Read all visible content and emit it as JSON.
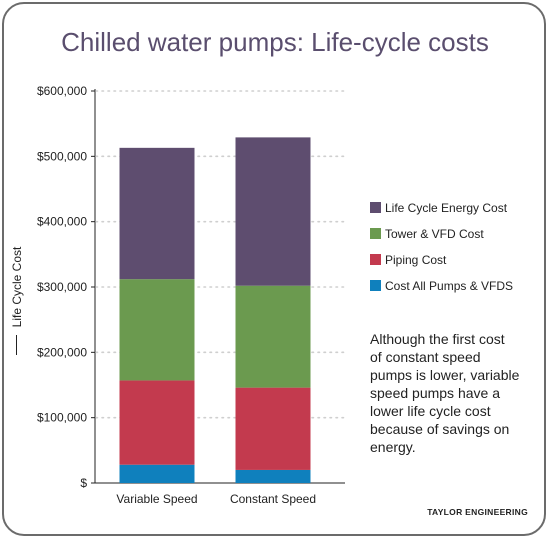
{
  "title": "Chilled water pumps: Life-cycle costs",
  "credit": "TAYLOR ENGINEERING",
  "note": "Although the first cost of constant speed pumps is lower, variable speed pumps have a lower life cycle cost because of savings on energy.",
  "chart_data": {
    "type": "bar",
    "stacked": true,
    "ylabel": "Life Cycle Cost",
    "xlabel": "",
    "ylim": [
      0,
      600000
    ],
    "yticks": [
      0,
      100000,
      200000,
      300000,
      400000,
      500000,
      600000
    ],
    "ytick_labels": [
      "$",
      "$100,000",
      "$200,000",
      "$300,000",
      "$400,000",
      "$500,000",
      "$600,000"
    ],
    "categories": [
      "Variable Speed",
      "Constant Speed"
    ],
    "grid": "horizontal dotted",
    "legend_position": "right",
    "series": [
      {
        "name": "Cost All Pumps & VFDS",
        "color": "#0f80bd",
        "values": [
          28000,
          20000
        ]
      },
      {
        "name": "Piping Cost",
        "color": "#c33a4e",
        "values": [
          129000,
          126000
        ]
      },
      {
        "name": "Tower & VFD Cost",
        "color": "#6b9a4f",
        "values": [
          155000,
          156000
        ]
      },
      {
        "name": "Life Cycle Energy Cost",
        "color": "#5e4d6f",
        "values": [
          201000,
          227000
        ]
      }
    ],
    "legend_order": [
      "Life Cycle Energy Cost",
      "Tower & VFD Cost",
      "Piping Cost",
      "Cost All Pumps & VFDS"
    ]
  }
}
